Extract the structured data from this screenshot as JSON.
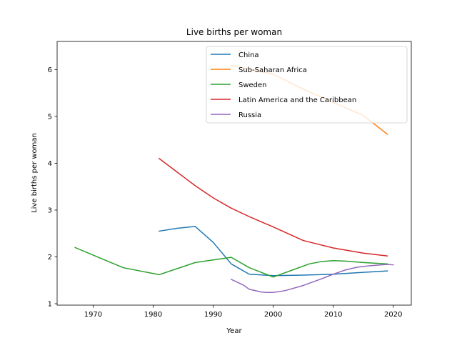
{
  "chart_data": {
    "type": "line",
    "title": "Live births per woman",
    "xlabel": "Year",
    "ylabel": "Live births per woman",
    "xlim": [
      1964,
      2023
    ],
    "ylim": [
      0.97,
      6.6
    ],
    "xticks": [
      1970,
      1980,
      1990,
      2000,
      2010,
      2020
    ],
    "yticks": [
      1,
      2,
      3,
      4,
      5,
      6
    ],
    "grid": false,
    "legend_position": "top-right",
    "series": [
      {
        "name": "China",
        "color": "#1f77b4",
        "x": [
          1981,
          1984,
          1987,
          1990,
          1993,
          1996,
          2000,
          2005,
          2010,
          2015,
          2019
        ],
        "y": [
          2.55,
          2.61,
          2.65,
          2.31,
          1.85,
          1.63,
          1.6,
          1.61,
          1.63,
          1.67,
          1.7
        ]
      },
      {
        "name": "Sub-Saharan Africa",
        "color": "#ff7f0e",
        "x": [
          1993,
          2000,
          2005,
          2010,
          2015,
          2019
        ],
        "y": [
          6.09,
          5.9,
          5.58,
          5.3,
          5.02,
          4.62
        ]
      },
      {
        "name": "Sweden",
        "color": "#2ca02c",
        "x": [
          1967,
          1975,
          1981,
          1987,
          1993,
          1996,
          2000,
          2003,
          2006,
          2008,
          2010,
          2012,
          2015,
          2019
        ],
        "y": [
          2.2,
          1.77,
          1.62,
          1.88,
          1.99,
          1.77,
          1.57,
          1.71,
          1.85,
          1.9,
          1.92,
          1.91,
          1.88,
          1.85
        ]
      },
      {
        "name": "Latin America and the Caribbean",
        "color": "#d62728",
        "x": [
          1981,
          1984,
          1987,
          1990,
          1993,
          1996,
          2000,
          2005,
          2010,
          2015,
          2019
        ],
        "y": [
          4.1,
          3.81,
          3.52,
          3.26,
          3.04,
          2.86,
          2.64,
          2.35,
          2.19,
          2.08,
          2.02
        ]
      },
      {
        "name": "Russia",
        "color": "#9467bd",
        "x": [
          1993,
          1995,
          1996,
          1998,
          1999,
          2000,
          2002,
          2005,
          2008,
          2010,
          2012,
          2014,
          2016,
          2018,
          2019,
          2020
        ],
        "y": [
          1.52,
          1.4,
          1.31,
          1.25,
          1.24,
          1.24,
          1.28,
          1.39,
          1.53,
          1.63,
          1.72,
          1.78,
          1.81,
          1.83,
          1.84,
          1.83
        ]
      }
    ]
  }
}
